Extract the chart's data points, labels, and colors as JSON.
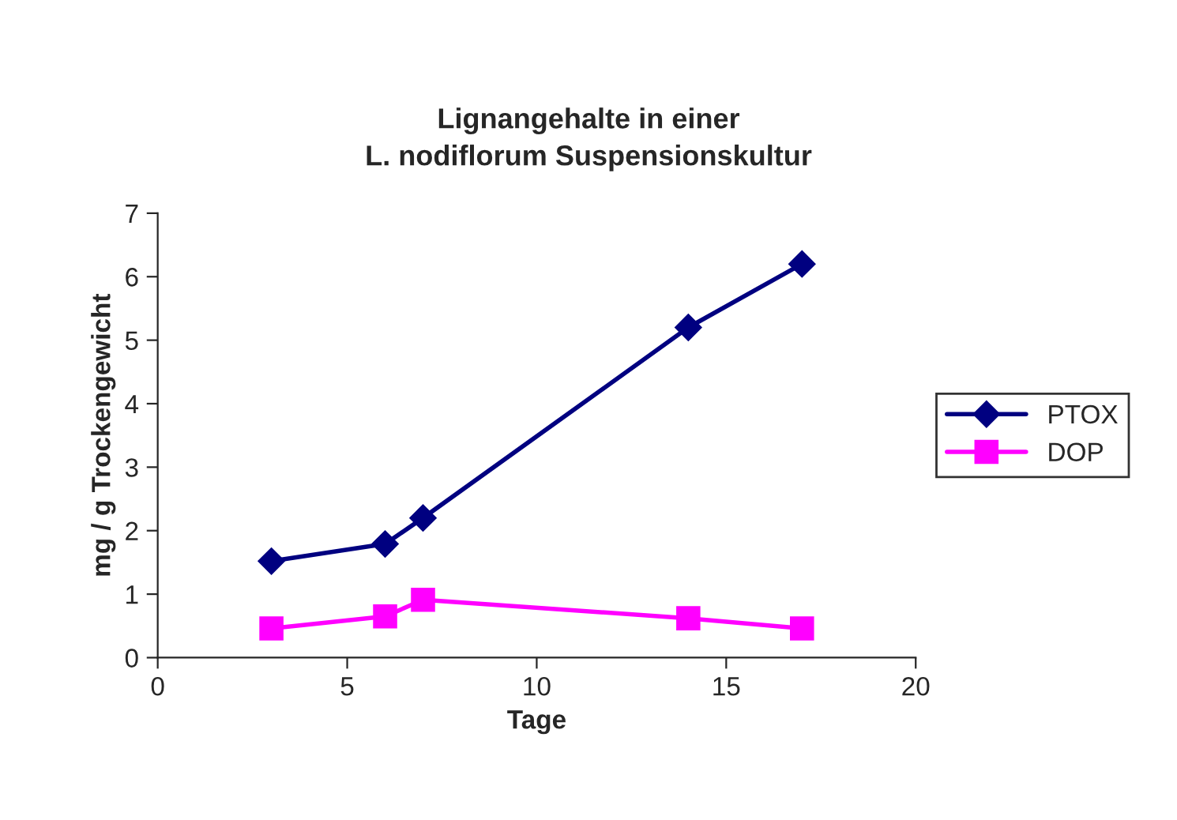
{
  "chart_data": {
    "type": "line",
    "title": "Lignangehalte in einer\nL. nodiflorum Suspensionskultur",
    "xlabel": "Tage",
    "ylabel": "mg / g Trockengewicht",
    "x": [
      3,
      6,
      7,
      14,
      17
    ],
    "series": [
      {
        "name": "PTOX",
        "color": "#000080",
        "values": [
          1.52,
          1.79,
          2.2,
          5.2,
          6.2
        ],
        "marker": "diamond"
      },
      {
        "name": "DOP",
        "color": "#ff00ff",
        "values": [
          0.46,
          0.65,
          0.91,
          0.62,
          0.46
        ],
        "marker": "square"
      }
    ],
    "xlim": [
      0,
      20
    ],
    "xticks": [
      0,
      5,
      10,
      15,
      20
    ],
    "ylim": [
      0,
      7
    ],
    "yticks": [
      0,
      1,
      2,
      3,
      4,
      5,
      6,
      7
    ],
    "grid": false,
    "legend": "right",
    "line_style": "solid"
  }
}
